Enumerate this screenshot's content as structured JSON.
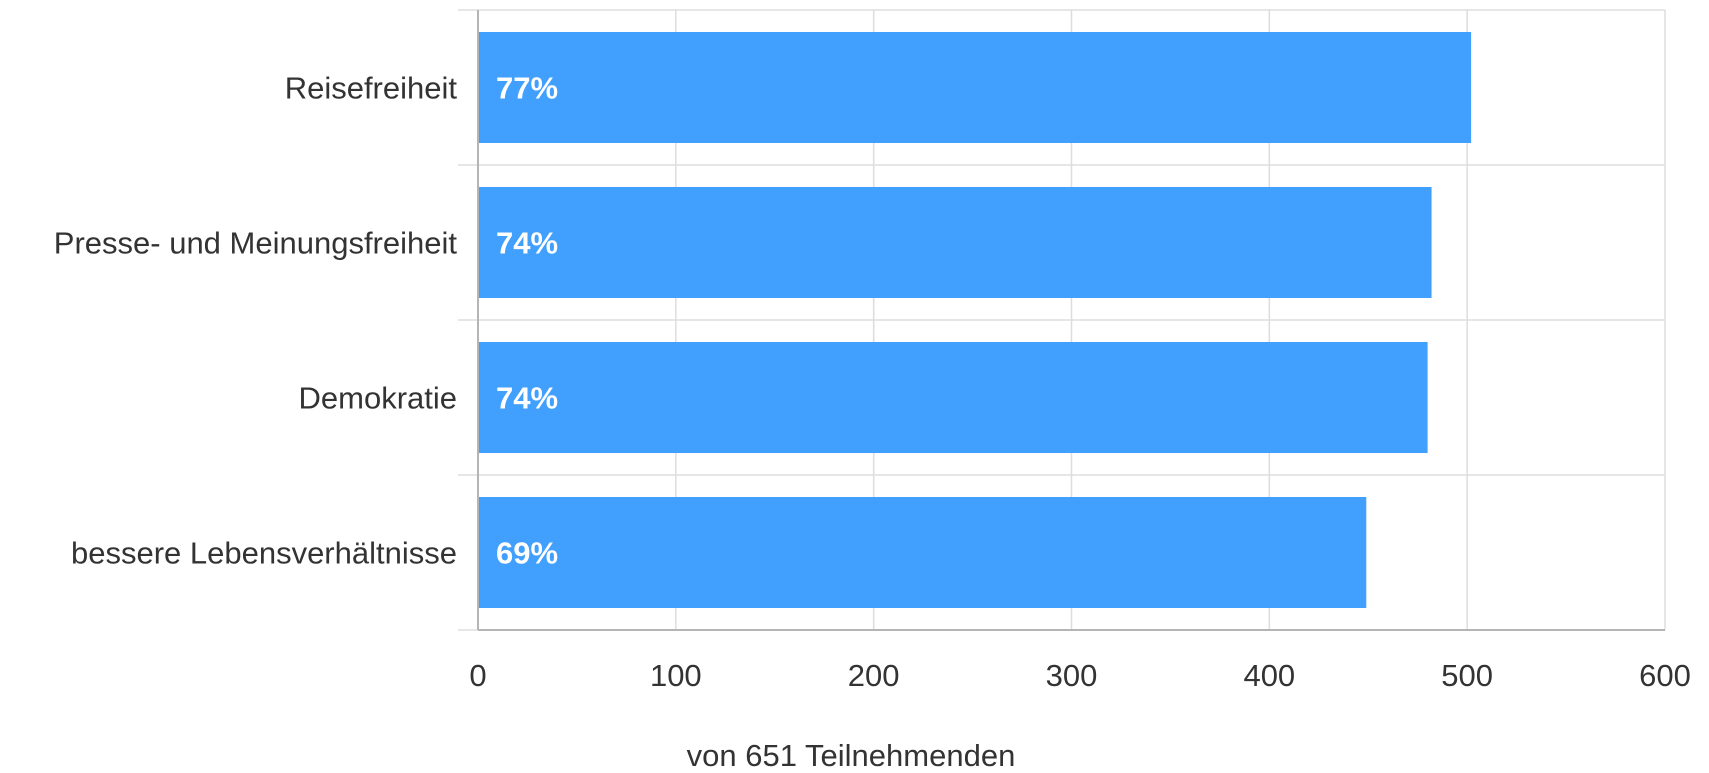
{
  "chart_data": {
    "type": "bar",
    "orientation": "horizontal",
    "categories": [
      "Reisefreiheit",
      "Presse- und Meinungsfreiheit",
      "Demokratie",
      "bessere Lebensverhältnisse"
    ],
    "values": [
      502,
      482,
      480,
      449
    ],
    "data_labels": [
      "77%",
      "74%",
      "74%",
      "69%"
    ],
    "xlabel": "von 651 Teilnehmenden",
    "ylabel": "",
    "title": "",
    "xlim": [
      0,
      600
    ],
    "xticks": [
      0,
      100,
      200,
      300,
      400,
      500,
      600
    ],
    "grid": true,
    "legend": "none",
    "bar_color": "#419ffe"
  }
}
